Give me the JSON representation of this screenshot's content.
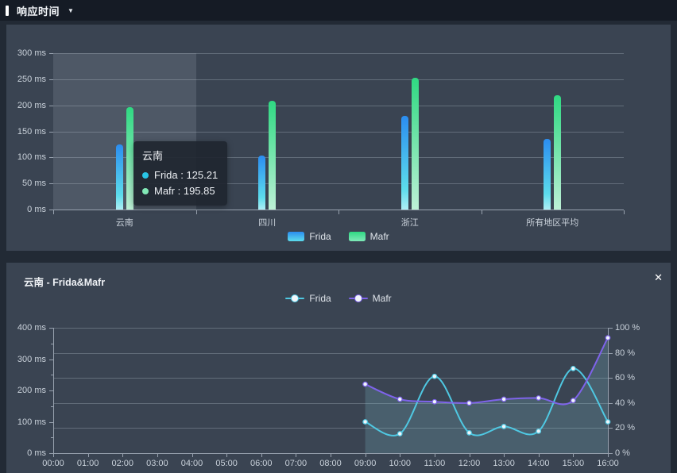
{
  "header": {
    "title": "响应时间",
    "dropdown_icon": "▼"
  },
  "line_panel": {
    "title": "云南 - Frida&Mafr",
    "close_icon": "✕"
  },
  "colors": {
    "page_bg": "#222a35",
    "header_bg": "#151b25",
    "panel_bg": "#3a4452",
    "grid_line": "rgba(205,215,228,0.28)",
    "axis_line": "#98a2af",
    "tick_text": "#c9d1da",
    "frida_bar_top": "#2b8df0",
    "frida_bar_bottom": "#5cdcec",
    "mafr_bar_top": "#2fd982",
    "mafr_bar_bottom": "#bdf0d6",
    "frida_line": "#4fc8e2",
    "mafr_line": "#7e63ea",
    "area_fill": "rgba(137,203,222,0.20)",
    "highlight_band": "rgba(214,224,238,0.13)",
    "tooltip_bg": "rgba(32,38,48,0.92)",
    "frida_dot": "#29c5e6",
    "mafr_dot": "#82e8b6"
  },
  "chart_data": [
    {
      "type": "bar",
      "title": "响应时间",
      "categories": [
        "云南",
        "四川",
        "浙江",
        "所有地区平均"
      ],
      "series": [
        {
          "name": "Frida",
          "values": [
            125.21,
            103,
            180,
            136
          ]
        },
        {
          "name": "Mafr",
          "values": [
            195.85,
            208,
            253,
            219
          ]
        }
      ],
      "unit": "ms",
      "ylim": [
        0,
        300
      ],
      "ytick_step": 50,
      "yticks": [
        "300 ms",
        "250 ms",
        "200 ms",
        "150 ms",
        "100 ms",
        "50 ms",
        "0 ms"
      ],
      "grid": true,
      "legend_position": "bottom",
      "highlighted_category": "云南",
      "tooltip": {
        "title": "云南",
        "separator": " : ",
        "rows": [
          {
            "series": "Frida",
            "value": "125.21"
          },
          {
            "series": "Mafr",
            "value": "195.85"
          }
        ]
      }
    },
    {
      "type": "line",
      "title": "云南 - Frida&Mafr",
      "x": [
        "00:00",
        "01:00",
        "02:00",
        "03:00",
        "04:00",
        "05:00",
        "06:00",
        "07:00",
        "08:00",
        "09:00",
        "10:00",
        "11:00",
        "12:00",
        "13:00",
        "14:00",
        "15:00",
        "16:00"
      ],
      "series": [
        {
          "name": "Frida",
          "axis": "left",
          "unit": "ms",
          "start_x": "09:00",
          "values": [
            100,
            62,
            245,
            65,
            85,
            70,
            270,
            100
          ],
          "area": false
        },
        {
          "name": "Mafr",
          "axis": "right",
          "unit": "%",
          "start_x": "09:00",
          "values": [
            55,
            43,
            41,
            40,
            43,
            44,
            42,
            92
          ],
          "area": true
        }
      ],
      "left_axis": {
        "lim": [
          0,
          400
        ],
        "ticks": [
          "400 ms",
          "300 ms",
          "200 ms",
          "100 ms",
          "0 ms"
        ]
      },
      "right_axis": {
        "lim": [
          0,
          100
        ],
        "ticks": [
          "100 %",
          "80 %",
          "60 %",
          "40 %",
          "20 %",
          "0 %"
        ]
      },
      "grid": true,
      "legend_position": "top"
    }
  ]
}
